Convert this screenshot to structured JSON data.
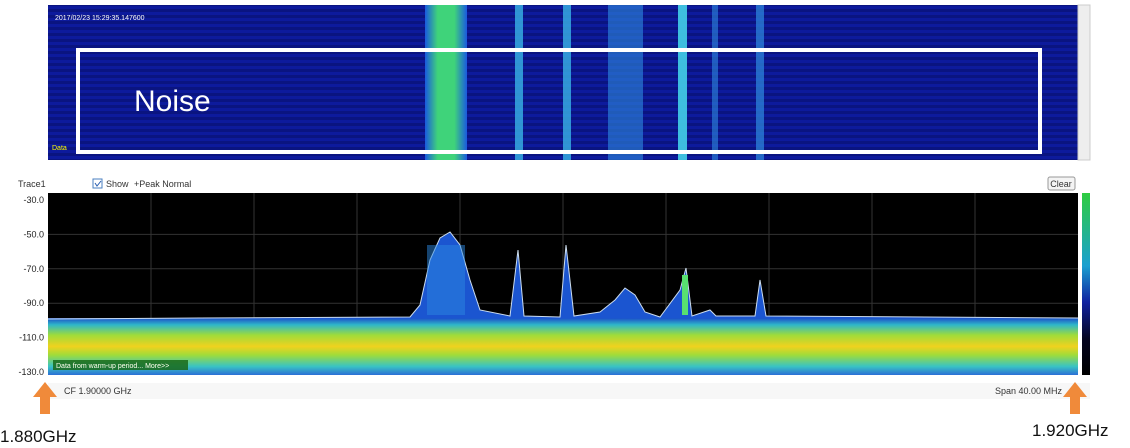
{
  "waterfall": {
    "timestamp": "2017/02/23 15:29:35.147600",
    "annotation": "Noise",
    "corner_label": "Data"
  },
  "toolbar": {
    "trace": "Trace1",
    "show": "Show",
    "mode": "+Peak Normal",
    "clear": "Clear"
  },
  "spectrum": {
    "y_labels": [
      "-30.0",
      "-50.0",
      "-70.0",
      "-90.0",
      "-110.0",
      "-130.0"
    ],
    "notice": "Data from warm-up period... More>>"
  },
  "footer": {
    "cf": "CF 1.90000 GHz",
    "span": "Span 40.00 MHz"
  },
  "markers": {
    "start": "1.880GHz",
    "end": "1.920GHz"
  }
}
